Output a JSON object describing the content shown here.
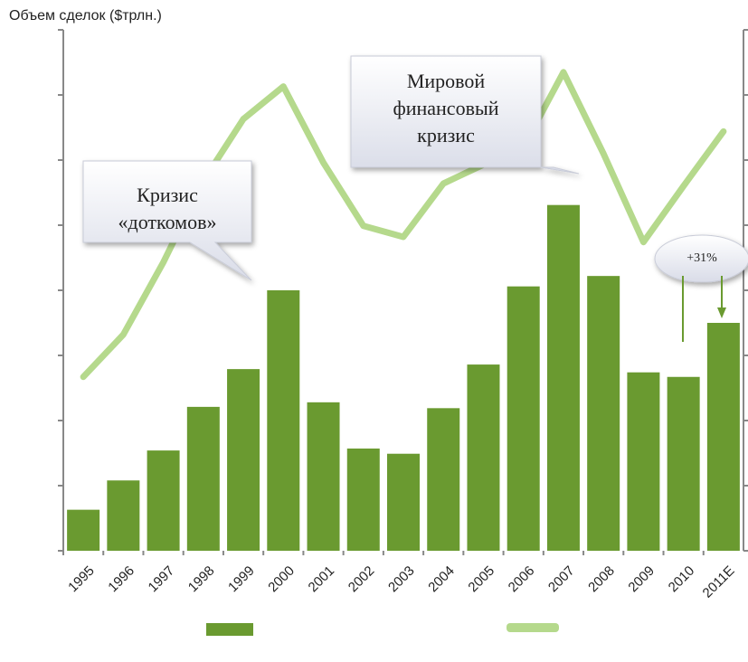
{
  "chart_data": {
    "type": "bar_line",
    "title": "Объем сделок ($трлн.)",
    "categories": [
      "1995",
      "1996",
      "1997",
      "1998",
      "1999",
      "2000",
      "2001",
      "2002",
      "2003",
      "2004",
      "2005",
      "2006",
      "2007",
      "2008",
      "2009",
      "2010",
      "2011E"
    ],
    "series": [
      {
        "type": "bar",
        "color": "#6a9a30",
        "values": [
          0.63,
          1.08,
          1.54,
          2.21,
          2.79,
          4.0,
          2.28,
          1.57,
          1.49,
          2.19,
          2.86,
          4.06,
          5.31,
          4.22,
          2.74,
          2.67,
          3.5
        ]
      },
      {
        "type": "line",
        "axis": "y2",
        "color": "#b5d98c",
        "values": [
          2.67,
          3.32,
          4.43,
          5.68,
          6.63,
          7.13,
          5.96,
          4.99,
          4.82,
          5.64,
          5.93,
          6.2,
          7.35,
          6.1,
          4.74,
          5.6,
          6.44
        ]
      }
    ],
    "ylim": [
      0,
      8
    ],
    "yticks": [
      0,
      1,
      2,
      3,
      4,
      5,
      6,
      7,
      8
    ],
    "y2lim": [
      0,
      8
    ],
    "y2ticks": [
      0,
      1,
      2,
      3,
      4,
      5,
      6,
      7,
      8
    ],
    "annotations": [
      {
        "lines": [
          "Кризис",
          "«доткомов»"
        ]
      },
      {
        "lines": [
          "Мировой",
          "финансовый",
          "кризис"
        ]
      },
      {
        "lines": [
          "+31%"
        ]
      }
    ]
  }
}
